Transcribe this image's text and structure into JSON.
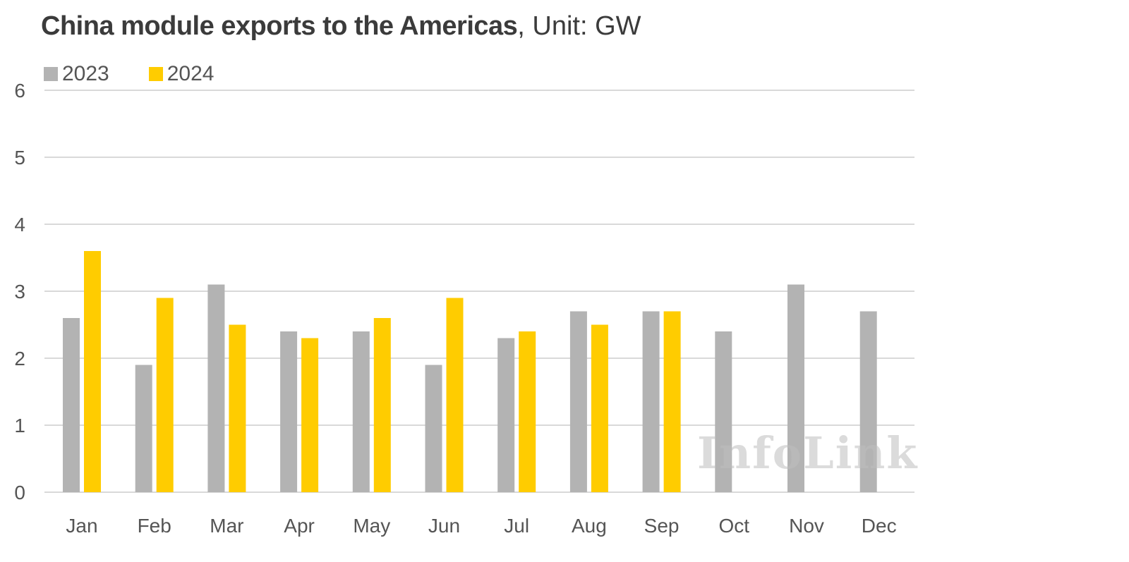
{
  "title": {
    "main": "China module exports to the Americas",
    "unit": ", Unit: GW"
  },
  "legend": [
    {
      "label": "2023",
      "color": "#b3b3b3"
    },
    {
      "label": "2024",
      "color": "#ffcc00"
    }
  ],
  "watermark": "InfoLink",
  "chart_data": {
    "type": "bar",
    "title": "China module exports to the Americas, Unit: GW",
    "xlabel": "",
    "ylabel": "",
    "ylim": [
      0,
      6
    ],
    "yticks": [
      0,
      1,
      2,
      3,
      4,
      5,
      6
    ],
    "grid": true,
    "legend_position": "top-left",
    "categories": [
      "Jan",
      "Feb",
      "Mar",
      "Apr",
      "May",
      "Jun",
      "Jul",
      "Aug",
      "Sep",
      "Oct",
      "Nov",
      "Dec"
    ],
    "series": [
      {
        "name": "2023",
        "color": "#b3b3b3",
        "values": [
          2.6,
          1.9,
          3.1,
          2.4,
          2.4,
          1.9,
          2.3,
          2.7,
          2.7,
          2.4,
          3.1,
          2.7
        ]
      },
      {
        "name": "2024",
        "color": "#ffcc00",
        "values": [
          3.6,
          2.9,
          2.5,
          2.3,
          2.6,
          2.9,
          2.4,
          2.5,
          2.7,
          null,
          null,
          null
        ]
      }
    ]
  }
}
